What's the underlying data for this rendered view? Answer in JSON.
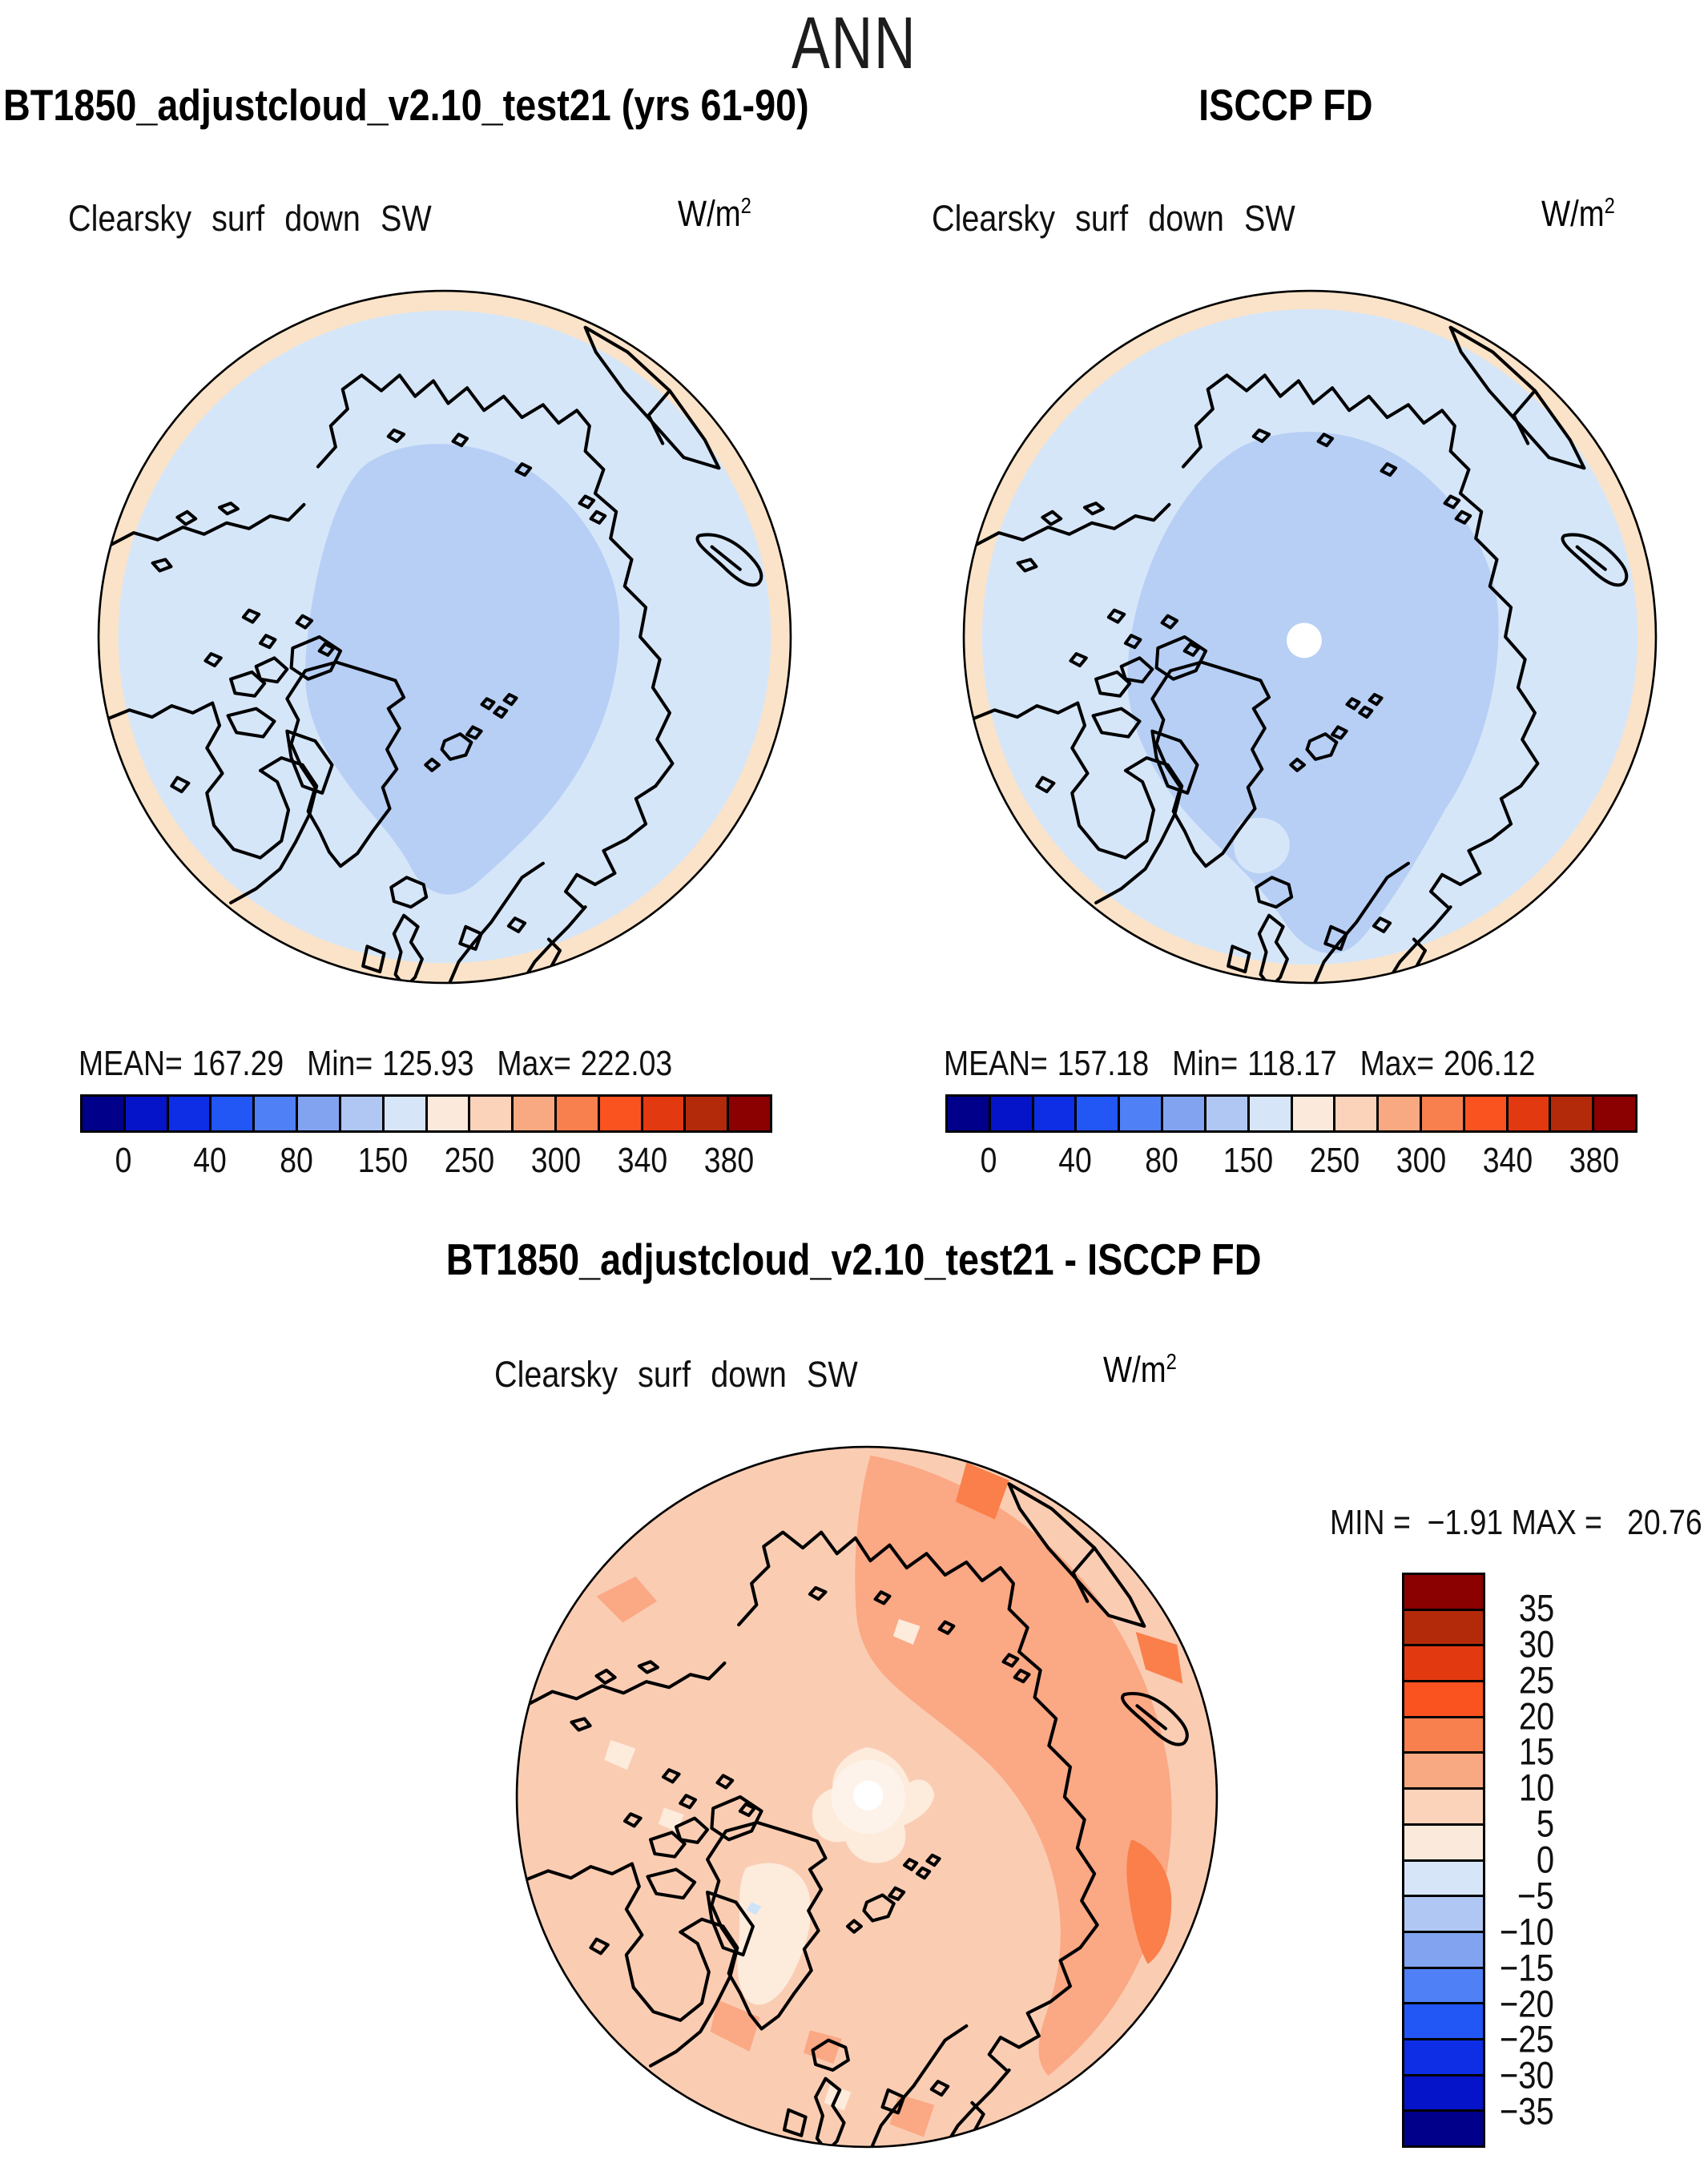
{
  "page": {
    "season_title": "ANN"
  },
  "colors": {
    "palette": [
      "#00008B",
      "#0614C9",
      "#0D2EE4",
      "#2256F5",
      "#4F80F5",
      "#82A4F0",
      "#AFC7F2",
      "#D6E6F8",
      "#FBEADB",
      "#FBD2BA",
      "#F9A982",
      "#F7804E",
      "#FA5320",
      "#E23910",
      "#B32A0A",
      "#8B0000"
    ],
    "map_ocean": "#D6E6F9",
    "map_blob": "#B7CFF5",
    "map_rim": "#FAE3C8",
    "diff_base": "#FACDB3",
    "diff_mid": "#FBA885",
    "diff_deep": "#FA7F4B",
    "diff_cream": "#FDEBDC",
    "diff_halo": "#FEF3EA",
    "diff_blue": "#CFE3F8",
    "pole_dot": "#FFFFFF",
    "coast": "#000000"
  },
  "panels": {
    "left": {
      "title": "BT1850_adjustcloud_v2.10_test21 (yrs 61-90)",
      "subtitle": "Clearsky surf down SW",
      "units_base": "W/m",
      "units_exp": "2",
      "stats": {
        "mean_label": "MEAN=",
        "mean": "167.29",
        "min_label": "Min=",
        "min": "125.93",
        "max_label": "Max=",
        "max": "222.03"
      },
      "ticks": [
        "0",
        "40",
        "80",
        "150",
        "250",
        "300",
        "340",
        "380"
      ]
    },
    "right": {
      "title": "ISCCP FD",
      "subtitle": "Clearsky surf down SW",
      "units_base": "W/m",
      "units_exp": "2",
      "stats": {
        "mean_label": "MEAN=",
        "mean": "157.18",
        "min_label": "Min=",
        "min": "118.17",
        "max_label": "Max=",
        "max": "206.12"
      },
      "ticks": [
        "0",
        "40",
        "80",
        "150",
        "250",
        "300",
        "340",
        "380"
      ]
    },
    "diff": {
      "title": "BT1850_adjustcloud_v2.10_test21 - ISCCP FD",
      "subtitle": "Clearsky surf down SW",
      "units_base": "W/m",
      "units_exp": "2",
      "minmax": {
        "min_label": "MIN =",
        "min": "−1.91",
        "max_label": "MAX =",
        "max": "20.76"
      },
      "ticks": [
        "35",
        "30",
        "25",
        "20",
        "15",
        "10",
        "5",
        "0",
        "−5",
        "−10",
        "−15",
        "−20",
        "−25",
        "−30",
        "−35"
      ]
    }
  },
  "chart_data": [
    {
      "type": "heatmap",
      "map_projection": "north_polar_stereographic",
      "season": "ANN",
      "title": "BT1850_adjustcloud_v2.10_test21 (yrs 61-90)",
      "variable": "Clearsky surf down SW",
      "units": "W/m2",
      "stats": {
        "mean": 167.29,
        "min": 125.93,
        "max": 222.03
      },
      "colorbar": {
        "orientation": "horizontal",
        "n_cells": 16,
        "tick_labels": [
          0,
          40,
          80,
          150,
          250,
          300,
          340,
          380
        ],
        "colors": [
          "#00008B",
          "#0614C9",
          "#0D2EE4",
          "#2256F5",
          "#4F80F5",
          "#82A4F0",
          "#AFC7F2",
          "#D6E6F8",
          "#FBEADB",
          "#FBD2BA",
          "#F9A982",
          "#F7804E",
          "#FA5320",
          "#E23910",
          "#B32A0A",
          "#8B0000"
        ]
      }
    },
    {
      "type": "heatmap",
      "map_projection": "north_polar_stereographic",
      "season": "ANN",
      "title": "ISCCP FD",
      "variable": "Clearsky surf down SW",
      "units": "W/m2",
      "stats": {
        "mean": 157.18,
        "min": 118.17,
        "max": 206.12
      },
      "colorbar": {
        "orientation": "horizontal",
        "n_cells": 16,
        "tick_labels": [
          0,
          40,
          80,
          150,
          250,
          300,
          340,
          380
        ],
        "colors": [
          "#00008B",
          "#0614C9",
          "#0D2EE4",
          "#2256F5",
          "#4F80F5",
          "#82A4F0",
          "#AFC7F2",
          "#D6E6F8",
          "#FBEADB",
          "#FBD2BA",
          "#F9A982",
          "#F7804E",
          "#FA5320",
          "#E23910",
          "#B32A0A",
          "#8B0000"
        ]
      }
    },
    {
      "type": "heatmap",
      "map_projection": "north_polar_stereographic",
      "season": "ANN",
      "title": "BT1850_adjustcloud_v2.10_test21 - ISCCP FD",
      "variable": "Clearsky surf down SW",
      "units": "W/m2",
      "stats": {
        "min": -1.91,
        "max": 20.76
      },
      "colorbar": {
        "orientation": "vertical",
        "n_cells": 16,
        "tick_labels": [
          35,
          30,
          25,
          20,
          15,
          10,
          5,
          0,
          -5,
          -10,
          -15,
          -20,
          -25,
          -30,
          -35
        ],
        "colors": [
          "#8B0000",
          "#B32A0A",
          "#E23910",
          "#FA5320",
          "#F7804E",
          "#F9A982",
          "#FBD2BA",
          "#FBEADB",
          "#D6E6F8",
          "#AFC7F2",
          "#82A4F0",
          "#4F80F5",
          "#2256F5",
          "#0D2EE4",
          "#0614C9",
          "#00008B"
        ]
      }
    }
  ]
}
